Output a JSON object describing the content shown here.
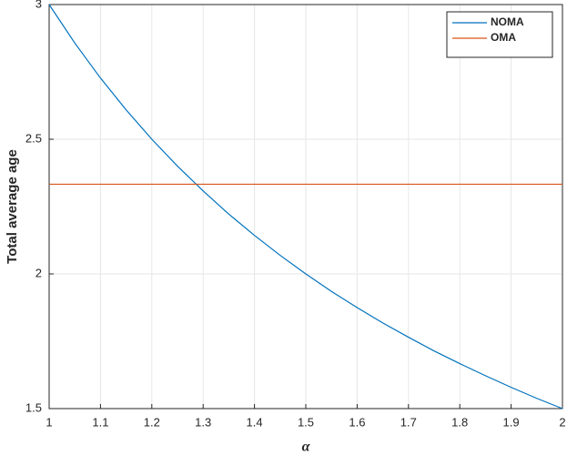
{
  "chart_data": {
    "type": "line",
    "xlabel": "α",
    "ylabel": "Total average age",
    "x": [
      1,
      1.05,
      1.1,
      1.15,
      1.2,
      1.25,
      1.3,
      1.35,
      1.4,
      1.45,
      1.5,
      1.55,
      1.6,
      1.65,
      1.7,
      1.75,
      1.8,
      1.85,
      1.9,
      1.95,
      2
    ],
    "series": [
      {
        "name": "NOMA",
        "color": "#0072bd",
        "values": [
          3,
          2.857,
          2.727,
          2.609,
          2.5,
          2.4,
          2.308,
          2.222,
          2.143,
          2.069,
          2,
          1.935,
          1.875,
          1.818,
          1.765,
          1.714,
          1.667,
          1.622,
          1.579,
          1.538,
          1.5
        ]
      },
      {
        "name": "OMA",
        "color": "#d95319",
        "values": [
          2.333,
          2.333,
          2.333,
          2.333,
          2.333,
          2.333,
          2.333,
          2.333,
          2.333,
          2.333,
          2.333,
          2.333,
          2.333,
          2.333,
          2.333,
          2.333,
          2.333,
          2.333,
          2.333,
          2.333,
          2.333
        ]
      }
    ],
    "xlim": [
      1,
      2
    ],
    "xticks": [
      1,
      1.1,
      1.2,
      1.3,
      1.4,
      1.5,
      1.6,
      1.7,
      1.8,
      1.9,
      2
    ],
    "ylim": [
      1.5,
      3
    ],
    "yticks": [
      1.5,
      2,
      2.5,
      3
    ],
    "grid": true,
    "legend": "northeast"
  }
}
